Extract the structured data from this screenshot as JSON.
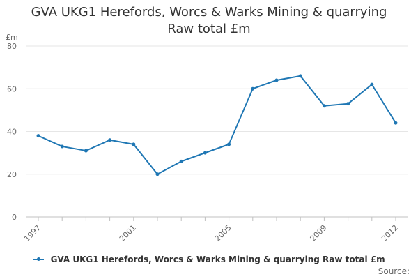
{
  "title_line1": "GVA UKG1 Herefords, Worcs & Warks Mining & quarrying",
  "title_line2": "Raw total £m",
  "source_label": "Source:",
  "chart_data": {
    "type": "line",
    "title": "GVA UKG1 Herefords, Worcs & Warks Mining & quarrying Raw total £m",
    "ylabel": "£m",
    "xlabel": "",
    "x": [
      1997,
      1998,
      1999,
      2000,
      2001,
      2002,
      2003,
      2004,
      2005,
      2006,
      2007,
      2008,
      2009,
      2010,
      2011,
      2012
    ],
    "x_tick_labels": [
      "1997",
      "2001",
      "2005",
      "2009",
      "2012"
    ],
    "y_ticks": [
      0,
      20,
      40,
      60,
      80
    ],
    "ylim": [
      0,
      80
    ],
    "grid": true,
    "legend_position": "bottom",
    "series": [
      {
        "name": "GVA UKG1 Herefords, Worcs & Warks Mining & quarrying Raw total £m",
        "color": "#1f77b4",
        "values": [
          38,
          33,
          31,
          36,
          34,
          20,
          26,
          30,
          34,
          60,
          64,
          66,
          52,
          53,
          62,
          44
        ]
      }
    ]
  }
}
